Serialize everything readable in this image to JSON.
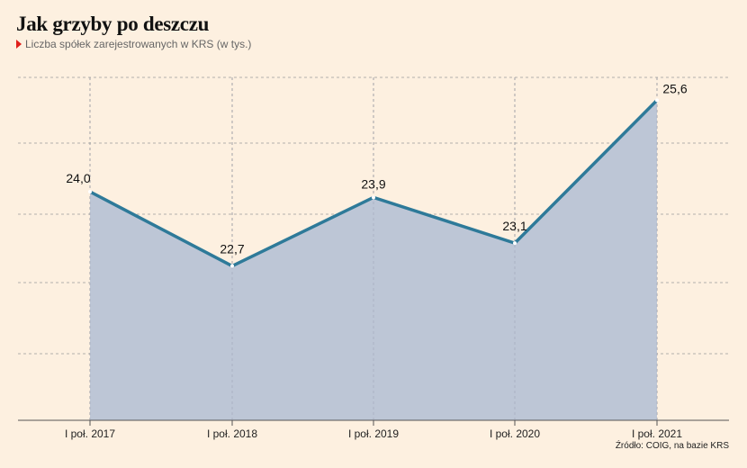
{
  "title": "Jak grzyby po deszczu",
  "subtitle": "Liczba spółek zarejestrowanych w KRS (w tys.)",
  "source": "Źródło: COIG, na bazie KRS",
  "colors": {
    "background": "#fdf0e0",
    "area_fill": "#bdc6d6",
    "line": "#2e7a99",
    "marker": "#e0201b",
    "grid": "#9a9a9a"
  },
  "chart_data": {
    "type": "area",
    "categories": [
      "I poł. 2017",
      "I poł. 2018",
      "I poł. 2019",
      "I poł. 2020",
      "I poł. 2021"
    ],
    "values": [
      24.0,
      22.7,
      23.9,
      23.1,
      25.6
    ],
    "value_labels": [
      "24,0",
      "22,7",
      "23,9",
      "23,1",
      "25,6"
    ],
    "ylim": [
      20.0,
      26.0
    ],
    "grid": true
  }
}
